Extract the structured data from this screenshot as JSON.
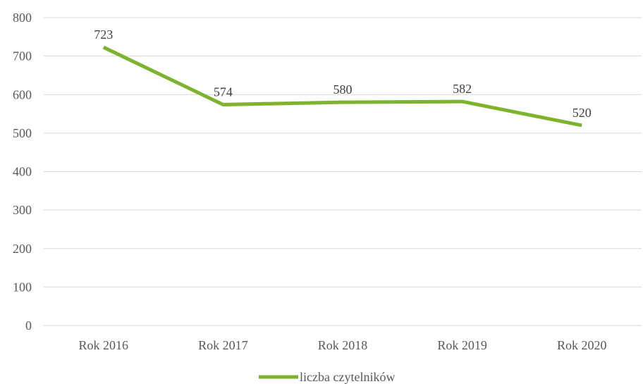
{
  "chart_data": {
    "type": "line",
    "categories": [
      "Rok 2016",
      "Rok 2017",
      "Rok 2018",
      "Rok 2019",
      "Rok 2020"
    ],
    "series": [
      {
        "name": "liczba czytelników",
        "values": [
          723,
          574,
          580,
          582,
          520
        ],
        "color": "#7db32f"
      }
    ],
    "ylim": [
      0,
      800
    ],
    "yticks": [
      0,
      100,
      200,
      300,
      400,
      500,
      600,
      700,
      800
    ],
    "grid": true,
    "legend_position": "bottom",
    "data_labels": true,
    "title": "",
    "xlabel": "",
    "ylabel": ""
  },
  "colors": {
    "gridline": "#d9d9d9",
    "text": "#595959"
  }
}
